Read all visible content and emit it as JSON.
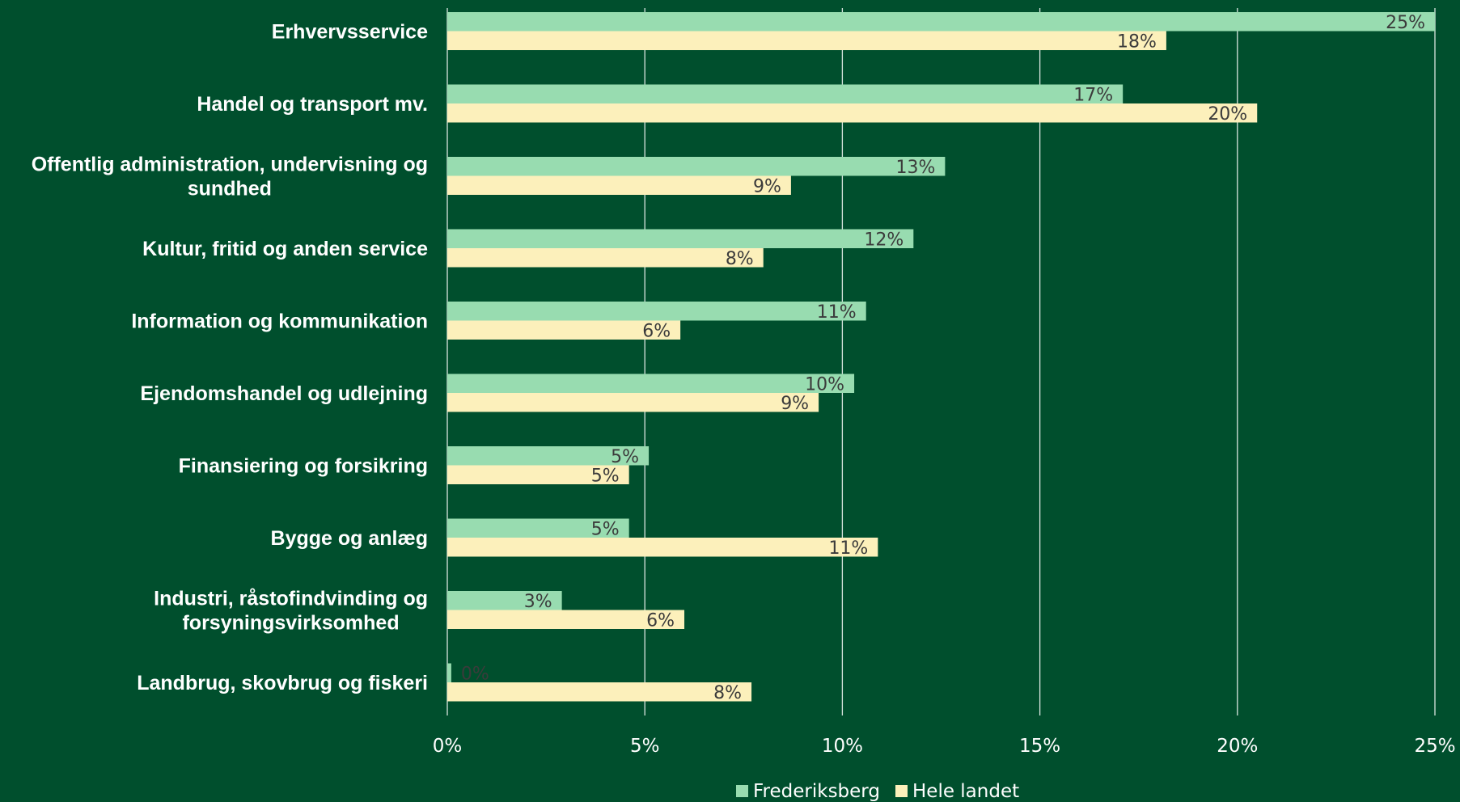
{
  "chart_data": {
    "type": "bar",
    "orientation": "horizontal",
    "title": "",
    "xlabel": "",
    "ylabel": "",
    "categories": [
      [
        "Erhvervsservice"
      ],
      [
        "Handel og transport mv."
      ],
      [
        "Offentlig administration, undervisning og",
        "sundhed"
      ],
      [
        "Kultur, fritid og anden service"
      ],
      [
        "Information og kommunikation"
      ],
      [
        "Ejendomshandel og udlejning"
      ],
      [
        "Finansiering og forsikring"
      ],
      [
        "Bygge og anlæg"
      ],
      [
        "Industri, råstofindvinding og",
        "forsyningsvirksomhed"
      ],
      [
        "Landbrug, skovbrug og fiskeri"
      ]
    ],
    "series": [
      {
        "name": "Frederiksberg",
        "color": "#98dcb0",
        "values": [
          25.0,
          17.1,
          12.6,
          11.8,
          10.6,
          10.3,
          5.1,
          4.6,
          2.9,
          0.1
        ],
        "labels": [
          "25%",
          "17%",
          "13%",
          "12%",
          "11%",
          "10%",
          "5%",
          "5%",
          "3%",
          "0%"
        ]
      },
      {
        "name": "Hele landet",
        "color": "#fcf0bb",
        "values": [
          18.2,
          20.5,
          8.7,
          8.0,
          5.9,
          9.4,
          4.6,
          10.9,
          6.0,
          7.7
        ],
        "labels": [
          "18%",
          "20%",
          "9%",
          "8%",
          "6%",
          "9%",
          "5%",
          "11%",
          "6%",
          "8%"
        ]
      }
    ],
    "xlim": [
      0,
      25
    ],
    "xticks": [
      0,
      5,
      10,
      15,
      20,
      25
    ],
    "xtick_labels": [
      "0%",
      "5%",
      "10%",
      "15%",
      "20%",
      "25%"
    ],
    "grid": true,
    "legend": "bottom-center",
    "colors": {
      "background": "#004f2d",
      "grid": "#ffffff",
      "category_text": "#ffffff",
      "data_label_text": "#3b3b3b",
      "zero_label_text": "#2a6a46"
    }
  }
}
